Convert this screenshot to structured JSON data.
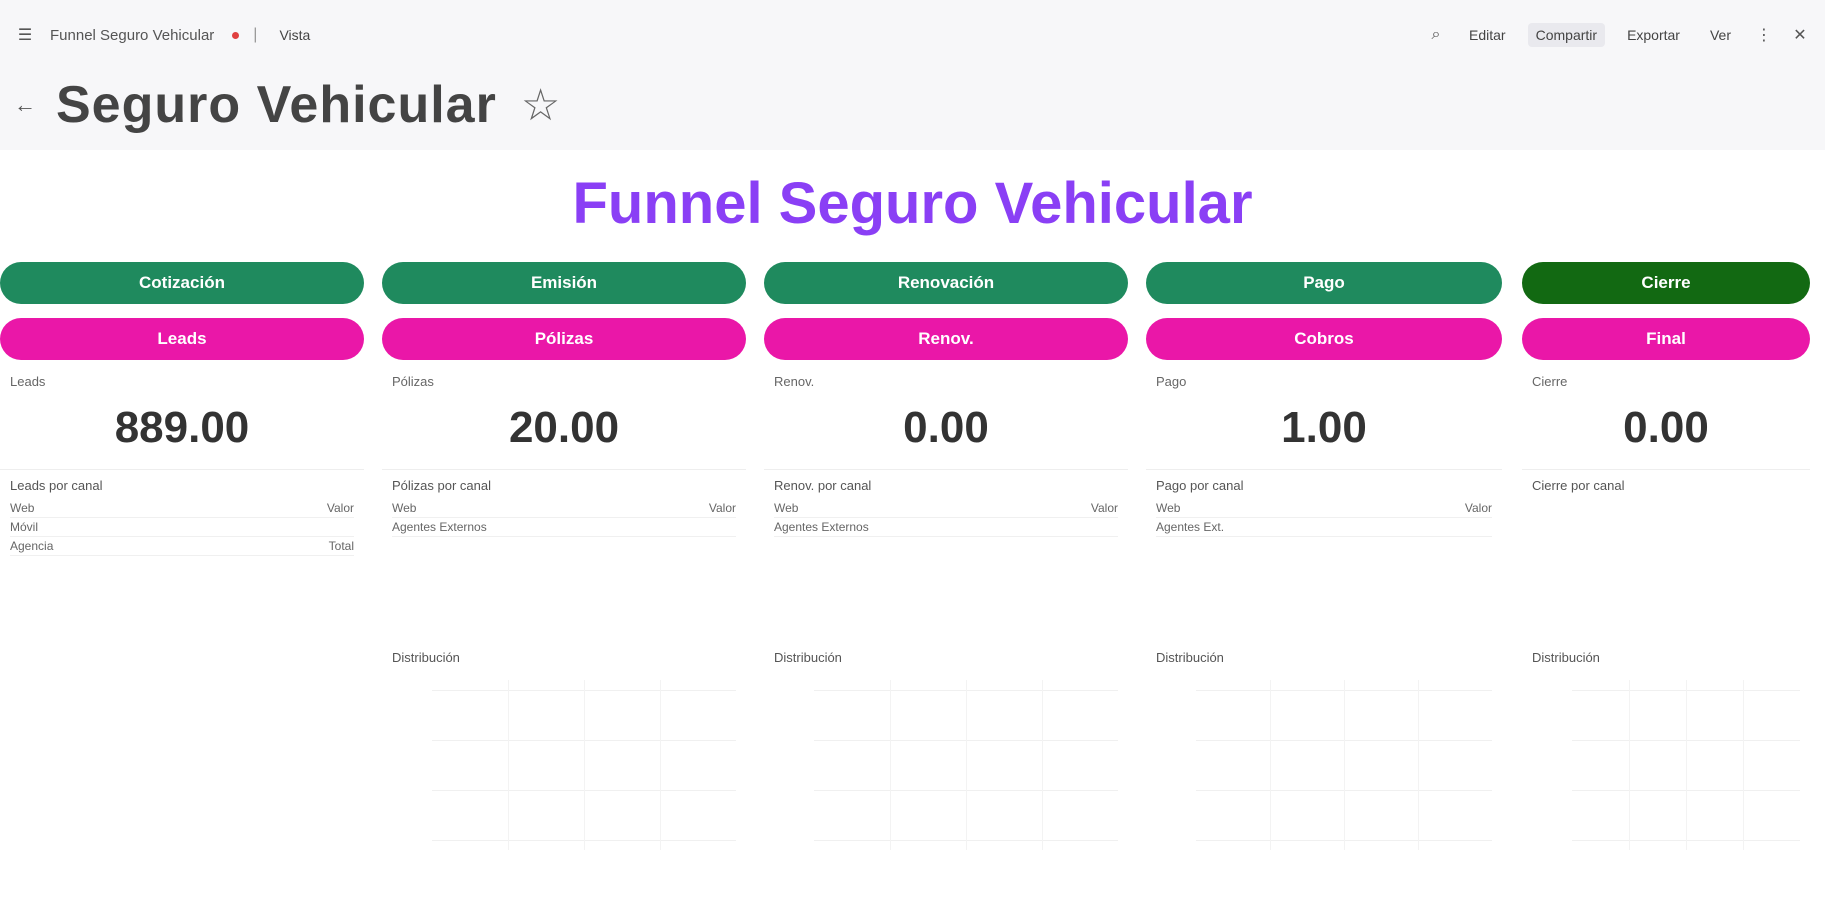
{
  "topbar": {
    "breadcrumb": "Funnel Seguro Vehicular",
    "tab": "Vista",
    "right_items": [
      "Editar",
      "Compartir",
      "Exportar",
      "Ver"
    ]
  },
  "dashboard": {
    "title": "Seguro Vehicular"
  },
  "funnel": {
    "title": "Funnel Seguro Vehicular",
    "colors": {
      "stage": "#1f8a5e",
      "stage_final": "#126912",
      "sub": "#ea17a8",
      "title": "#8a3ff5"
    },
    "columns": [
      {
        "stage": "Cotización",
        "sub": "Leads",
        "kpi_label": "Leads",
        "kpi_value": "889.00",
        "table_title": "Leads por canal",
        "rows": [
          [
            "Web",
            "Valor"
          ],
          [
            "Móvil",
            ""
          ],
          [
            "Agencia",
            "Total"
          ]
        ],
        "chart_title": ""
      },
      {
        "stage": "Emisión",
        "sub": "Pólizas",
        "kpi_label": "Pólizas",
        "kpi_value": "20.00",
        "table_title": "Pólizas por canal",
        "rows": [
          [
            "Web",
            "Valor"
          ],
          [
            "Agentes Externos",
            ""
          ]
        ],
        "chart_title": "Distribución"
      },
      {
        "stage": "Renovación",
        "sub": "Renov.",
        "kpi_label": "Renov.",
        "kpi_value": "0.00",
        "table_title": "Renov. por canal",
        "rows": [
          [
            "Web",
            "Valor"
          ],
          [
            "Agentes Externos",
            ""
          ]
        ],
        "chart_title": "Distribución"
      },
      {
        "stage": "Pago",
        "sub": "Cobros",
        "kpi_label": "Pago",
        "kpi_value": "1.00",
        "table_title": "Pago por canal",
        "rows": [
          [
            "Web",
            "Valor"
          ],
          [
            "Agentes Ext.",
            ""
          ]
        ],
        "chart_title": "Distribución"
      },
      {
        "stage": "Cierre",
        "sub": "Final",
        "kpi_label": "Cierre",
        "kpi_value": "0.00",
        "table_title": "Cierre por canal",
        "rows": [],
        "chart_title": "Distribución"
      }
    ]
  }
}
